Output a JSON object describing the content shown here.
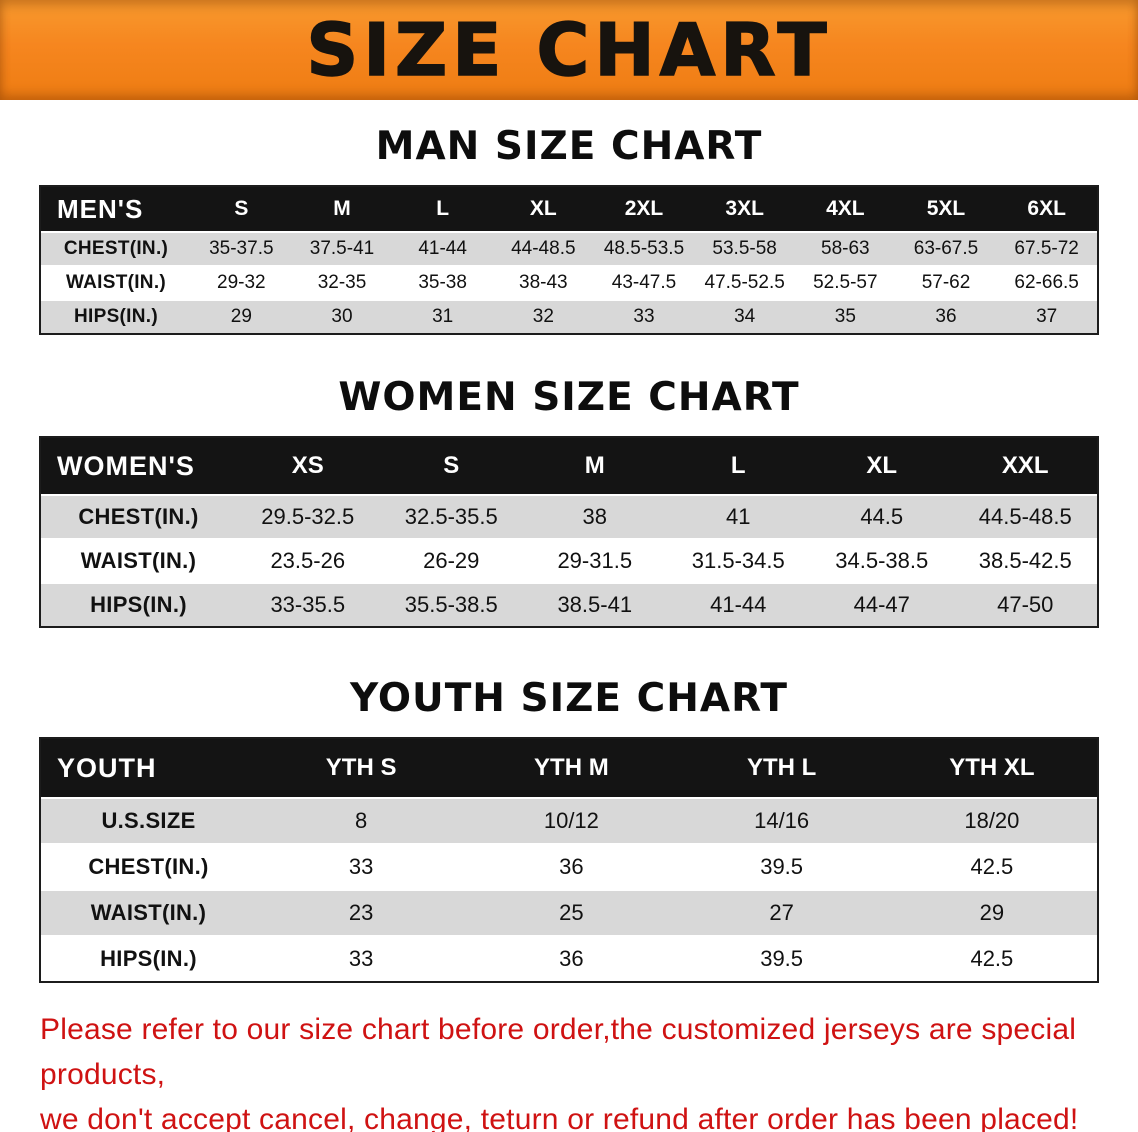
{
  "banner": {
    "title": "SIZE CHART"
  },
  "colors": {
    "banner_bg": "#f6861f",
    "header_bg": "#141414",
    "row_alt": "#d8d8d8",
    "footer_text": "#cf1212"
  },
  "sections": [
    {
      "id": "men",
      "title": "MAN SIZE CHART",
      "label": "MEN'S",
      "columns": [
        "S",
        "M",
        "L",
        "XL",
        "2XL",
        "3XL",
        "4XL",
        "5XL",
        "6XL"
      ],
      "rows": [
        {
          "label": "CHEST(IN.)",
          "values": [
            "35-37.5",
            "37.5-41",
            "41-44",
            "44-48.5",
            "48.5-53.5",
            "53.5-58",
            "58-63",
            "63-67.5",
            "67.5-72"
          ]
        },
        {
          "label": "WAIST(IN.)",
          "values": [
            "29-32",
            "32-35",
            "35-38",
            "38-43",
            "43-47.5",
            "47.5-52.5",
            "52.5-57",
            "57-62",
            "62-66.5"
          ]
        },
        {
          "label": "HIPS(IN.)",
          "values": [
            "29",
            "30",
            "31",
            "32",
            "33",
            "34",
            "35",
            "36",
            "37"
          ]
        }
      ]
    },
    {
      "id": "women",
      "title": "WOMEN SIZE CHART",
      "label": "WOMEN'S",
      "columns": [
        "XS",
        "S",
        "M",
        "L",
        "XL",
        "XXL"
      ],
      "rows": [
        {
          "label": "CHEST(IN.)",
          "values": [
            "29.5-32.5",
            "32.5-35.5",
            "38",
            "41",
            "44.5",
            "44.5-48.5"
          ]
        },
        {
          "label": "WAIST(IN.)",
          "values": [
            "23.5-26",
            "26-29",
            "29-31.5",
            "31.5-34.5",
            "34.5-38.5",
            "38.5-42.5"
          ]
        },
        {
          "label": "HIPS(IN.)",
          "values": [
            "33-35.5",
            "35.5-38.5",
            "38.5-41",
            "41-44",
            "44-47",
            "47-50"
          ]
        }
      ]
    },
    {
      "id": "youth",
      "title": "YOUTH SIZE CHART",
      "label": "YOUTH",
      "columns": [
        "YTH S",
        "YTH M",
        "YTH L",
        "YTH XL"
      ],
      "rows": [
        {
          "label": "U.S.SIZE",
          "values": [
            "8",
            "10/12",
            "14/16",
            "18/20"
          ]
        },
        {
          "label": "CHEST(IN.)",
          "values": [
            "33",
            "36",
            "39.5",
            "42.5"
          ]
        },
        {
          "label": "WAIST(IN.)",
          "values": [
            "23",
            "25",
            "27",
            "29"
          ]
        },
        {
          "label": "HIPS(IN.)",
          "values": [
            "33",
            "36",
            "39.5",
            "42.5"
          ]
        }
      ]
    }
  ],
  "footer": {
    "lines": [
      "Please refer to our size chart before order,the customized jerseys are special products,",
      "we don't accept cancel, change, teturn or refund after order has been placed!"
    ]
  }
}
